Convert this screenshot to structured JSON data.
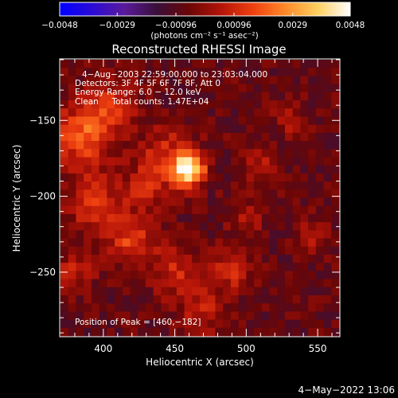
{
  "chart_data": {
    "type": "heatmap",
    "title": "Reconstructed RHESSI Image",
    "xlabel": "Heliocentric X (arcsec)",
    "ylabel": "Heliocentric Y (arcsec)",
    "xlim": [
      370,
      565
    ],
    "ylim": [
      -292,
      -110
    ],
    "x_ticks": [
      400,
      450,
      500,
      550
    ],
    "y_ticks": [
      -150,
      -200,
      -250
    ],
    "x_tick_labels": [
      "400",
      "450",
      "500",
      "550"
    ],
    "y_tick_labels": [
      "−150",
      "−200",
      "−250"
    ],
    "colorbar": {
      "min": -0.0048,
      "max": 0.0048,
      "tick_values": [
        -0.0048,
        -0.0029,
        -0.00096,
        0.00096,
        0.0029,
        0.0048
      ],
      "tick_labels": [
        "−0.0048",
        "−0.0029",
        "−0.00096",
        "0.00096",
        "0.0029",
        "0.0048"
      ],
      "unit_label": "(photons cm⁻² s⁻¹ asec⁻²)",
      "colors": [
        "#0000ff",
        "#2a0bd6",
        "#5a1a9c",
        "#3a0f3a",
        "#6a0606",
        "#b41408",
        "#ef4010",
        "#ff8a2a",
        "#ffd060",
        "#ffffff"
      ]
    },
    "grid": false,
    "annotations": [
      "4−Aug−2003 22:59:00.000 to 23:03:04.000",
      "Detectors: 3F 4F 5F 6F 7F 8F, Att 0",
      "Energy Range: 6.0 − 12.0 keV",
      "Clean     Total counts: 1.47E+04"
    ],
    "peak_label": "Position of Peak = [460,−182]",
    "peak": {
      "x": 460,
      "y": -182,
      "value": 0.0048
    },
    "sources": [
      {
        "x": 460,
        "y": -182,
        "amp": 0.0055,
        "sigma": 7
      },
      {
        "x": 445,
        "y": -175,
        "amp": 0.0018,
        "sigma": 14
      },
      {
        "x": 385,
        "y": -160,
        "amp": 0.0026,
        "sigma": 14
      },
      {
        "x": 405,
        "y": -140,
        "amp": 0.0017,
        "sigma": 12
      },
      {
        "x": 395,
        "y": -205,
        "amp": 0.0018,
        "sigma": 14
      },
      {
        "x": 420,
        "y": -230,
        "amp": 0.0021,
        "sigma": 11
      },
      {
        "x": 380,
        "y": -250,
        "amp": 0.0013,
        "sigma": 10
      },
      {
        "x": 450,
        "y": -250,
        "amp": 0.0015,
        "sigma": 12
      },
      {
        "x": 490,
        "y": -248,
        "amp": 0.0019,
        "sigma": 9
      },
      {
        "x": 470,
        "y": -275,
        "amp": 0.0014,
        "sigma": 11
      },
      {
        "x": 510,
        "y": -180,
        "amp": 0.0011,
        "sigma": 9
      },
      {
        "x": 500,
        "y": -215,
        "amp": 0.0011,
        "sigma": 9
      },
      {
        "x": 530,
        "y": -150,
        "amp": 0.001,
        "sigma": 8
      },
      {
        "x": 545,
        "y": -225,
        "amp": 0.0011,
        "sigma": 8
      },
      {
        "x": 430,
        "y": -195,
        "amp": 0.0012,
        "sigma": 10
      }
    ],
    "background": -0.0007,
    "map_dimensions": [
      36,
      34
    ]
  },
  "footer": {
    "date": "4−May−2022 13:06"
  }
}
